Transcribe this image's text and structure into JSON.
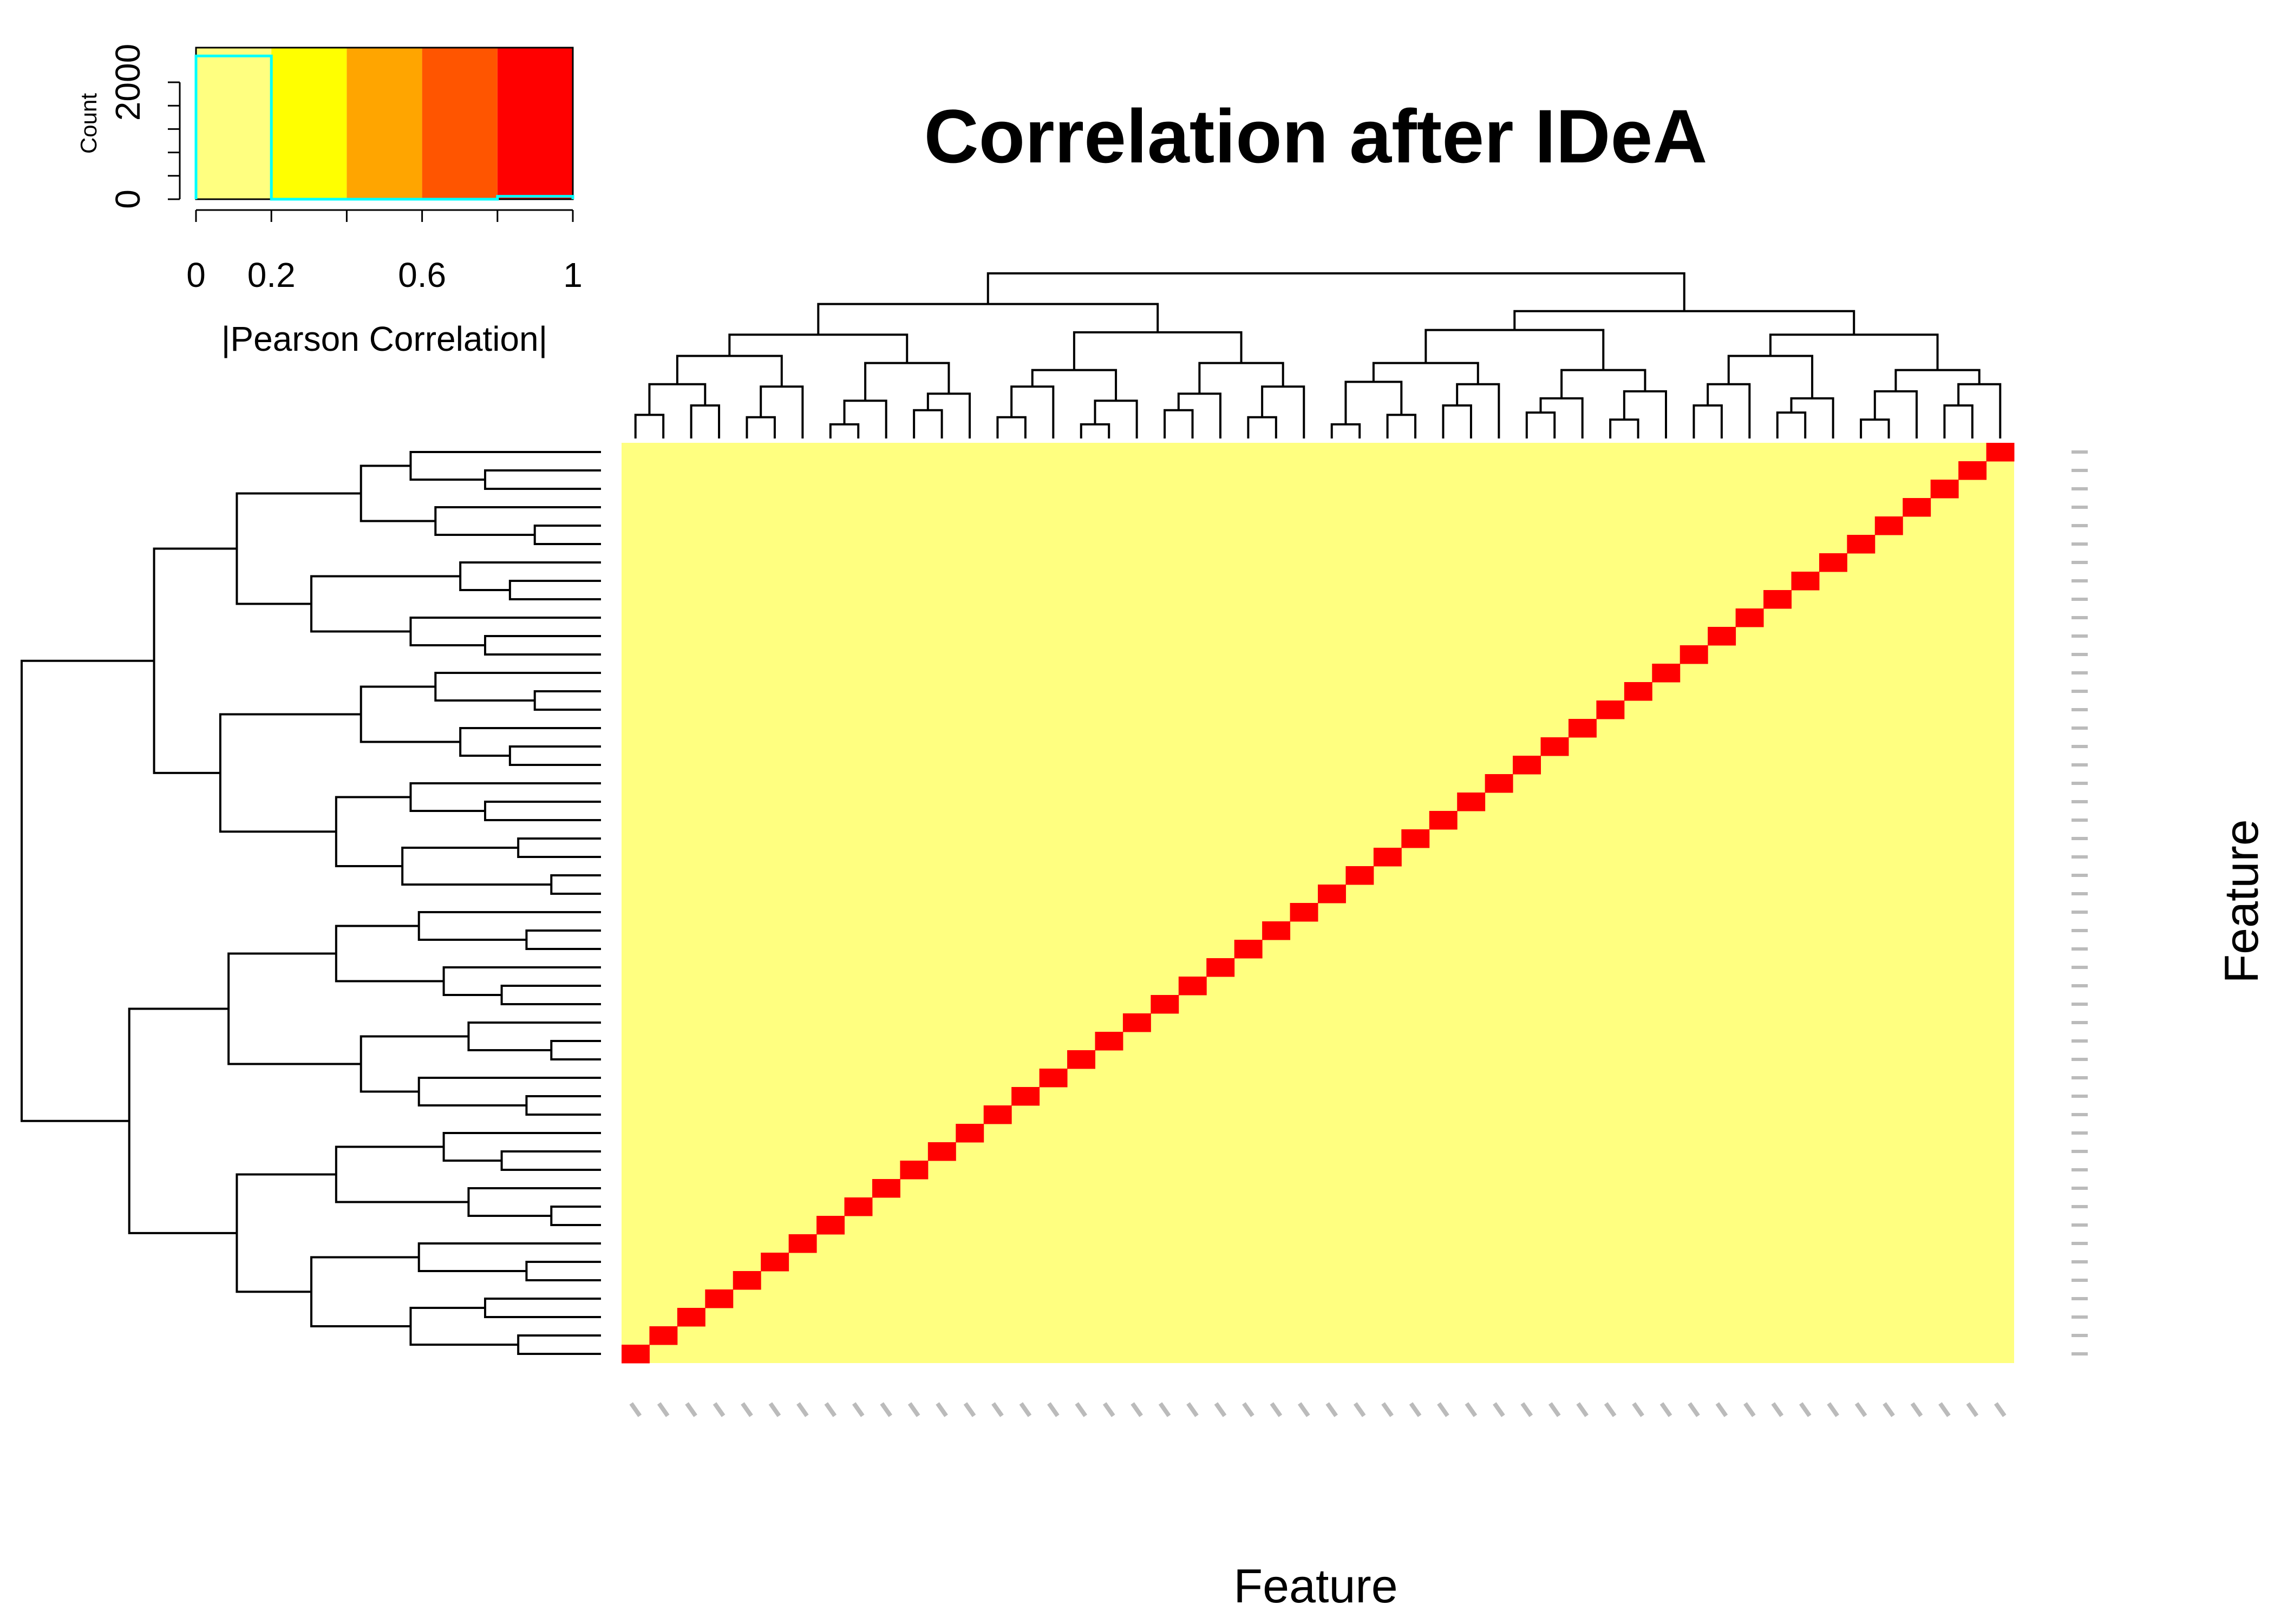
{
  "chart_data": {
    "type": "heatmap",
    "title": "Correlation after IDeA",
    "xlabel": "Feature",
    "ylabel": "Feature",
    "value_range": [
      0,
      1
    ],
    "colors": {
      "low": "#FFFF80",
      "diagonal": "#FF0000",
      "scale": [
        "#FFFF80",
        "#FFFF00",
        "#FFA500",
        "#FF5500",
        "#FF0000"
      ],
      "histogram_line": "#00FFFF"
    },
    "n_features": 50,
    "diagonal_value": 1,
    "offdiagonal_value_approx": 0.05,
    "color_key": {
      "xlabel": "|Pearson Correlation|",
      "ylabel": "Count",
      "x_ticks": [
        "0",
        "0.2",
        "0.6",
        "1"
      ],
      "y_ticks": [
        "0",
        "2000"
      ],
      "breaks": [
        0,
        0.2,
        0.4,
        0.6,
        0.8,
        1
      ],
      "histogram_counts": [
        2450,
        0,
        0,
        0,
        50
      ],
      "ylim": [
        0,
        2500
      ]
    }
  }
}
